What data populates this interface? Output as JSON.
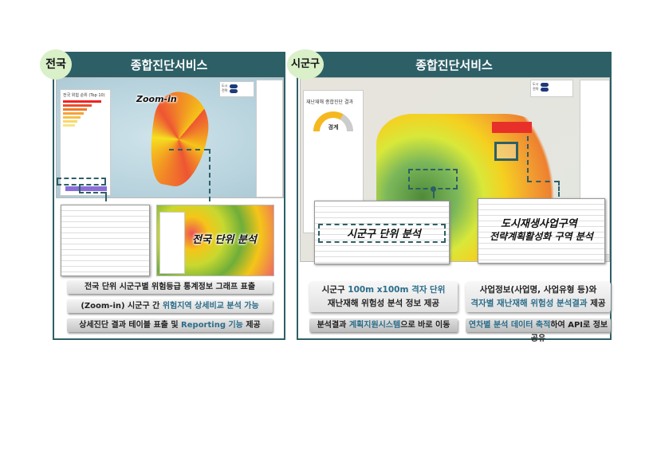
{
  "left": {
    "badge": "전국",
    "title": "종합진단서비스",
    "map_sidebar_title": "전국 위험 순위 (Top 10)",
    "zoom_label": "Zoom-in",
    "sub_label": "전국 단위 분석",
    "bullets": [
      {
        "parts": [
          {
            "t": "전국 단위 시군구별 위험등급 통계정보 그래프 표출",
            "h": false
          }
        ]
      },
      {
        "parts": [
          {
            "t": "(Zoom-in) 시군구 간 ",
            "h": false
          },
          {
            "t": "위험지역 상세비교 분석 가능",
            "h": true
          }
        ]
      },
      {
        "parts": [
          {
            "t": "상세진단 결과 테이블 표출 및 ",
            "h": false
          },
          {
            "t": "Reporting 기능",
            "h": true
          },
          {
            "t": " 제공",
            "h": false
          }
        ]
      }
    ]
  },
  "right": {
    "badge": "시군구",
    "title": "종합진단서비스",
    "panel_title": "재난재해 종합진단 결과",
    "gauge_value": "경계",
    "label_a": "시군구 단위 분석",
    "label_b1": "도시재생사업구역",
    "label_b2": "전략계획활성화 구역 분석",
    "box_a": {
      "line1_pre": "시군구 ",
      "line1_hl": "100m x100m 격자 단위",
      "line2": "재난재해 위험성 분석 정보 제공"
    },
    "box_b": {
      "line1": "사업정보(사업명, 사업유형 등)와",
      "line2_hl": "격자별 재난재해 위험성 분석결과",
      "line2_post": " 제공"
    },
    "bar_a": {
      "pre": "분석결과 ",
      "hl": "계획지원시스템",
      "post": "으로 바로 이동"
    },
    "bar_b": {
      "hl": "연차별 분석 데이터 축적",
      "post": "하여 API로 정보공유"
    }
  },
  "colors": {
    "header": "#2d5f66",
    "badge": "#d9f0c8",
    "highlight": "#2b6d8a"
  }
}
